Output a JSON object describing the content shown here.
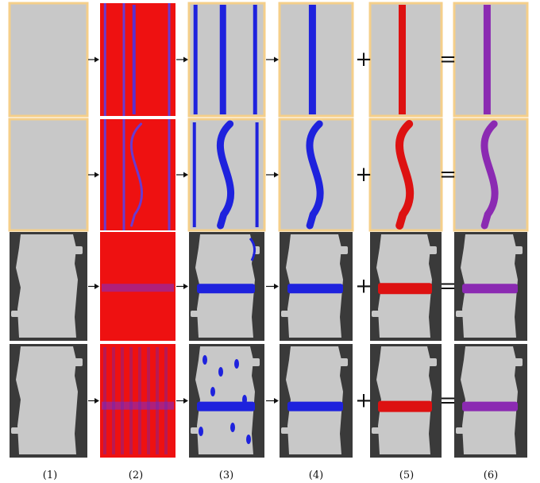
{
  "column_labels": [
    "(1)",
    "(2)",
    "(3)",
    "(4)",
    "(5)",
    "(6)"
  ],
  "operators": {
    "plus": "+",
    "equals": "="
  },
  "rows": [
    {
      "kind": "straight-vertical-fracture",
      "frame": "light-tan"
    },
    {
      "kind": "curved-vertical-fracture",
      "frame": "light-tan"
    },
    {
      "kind": "horizontal-fracture-core",
      "frame": "dark-grey"
    },
    {
      "kind": "horizontal-fracture-core-noisy",
      "frame": "dark-grey"
    }
  ],
  "colors": {
    "sample": "#c8c8c8",
    "frame_light": "#f5cf8a",
    "frame_dark": "#3a3a3a",
    "segment_blue": "#1e22dd",
    "label_red": "#dd1111",
    "overlay_red": "#ee1111",
    "overlap_purple": "#8b2ab2"
  }
}
